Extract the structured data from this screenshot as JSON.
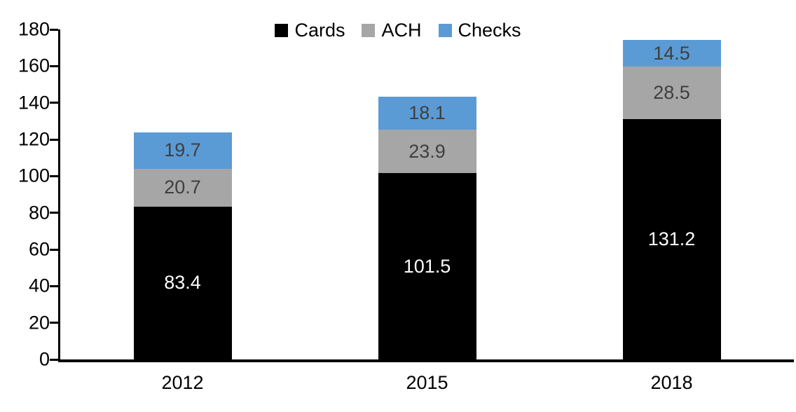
{
  "chart_data": {
    "type": "bar",
    "stacked": true,
    "title": "",
    "xlabel": "",
    "ylabel": "",
    "categories": [
      "2012",
      "2015",
      "2018"
    ],
    "series": [
      {
        "name": "Cards",
        "color": "#000000",
        "label_color": "#ffffff",
        "values": [
          83.4,
          101.5,
          131.2
        ]
      },
      {
        "name": "ACH",
        "color": "#a6a6a6",
        "label_color": "#3f3f3f",
        "values": [
          20.7,
          23.9,
          28.5
        ]
      },
      {
        "name": "Checks",
        "color": "#5b9bd5",
        "label_color": "#3f3f3f",
        "values": [
          19.7,
          18.1,
          14.5
        ]
      }
    ],
    "totals": [
      123.8,
      143.5,
      174.2
    ],
    "ylim": [
      0,
      180
    ],
    "yticks": [
      0,
      20,
      40,
      60,
      80,
      100,
      120,
      140,
      160,
      180
    ],
    "grid": false,
    "legend_position": "top-center",
    "axis_color": "#000000"
  }
}
